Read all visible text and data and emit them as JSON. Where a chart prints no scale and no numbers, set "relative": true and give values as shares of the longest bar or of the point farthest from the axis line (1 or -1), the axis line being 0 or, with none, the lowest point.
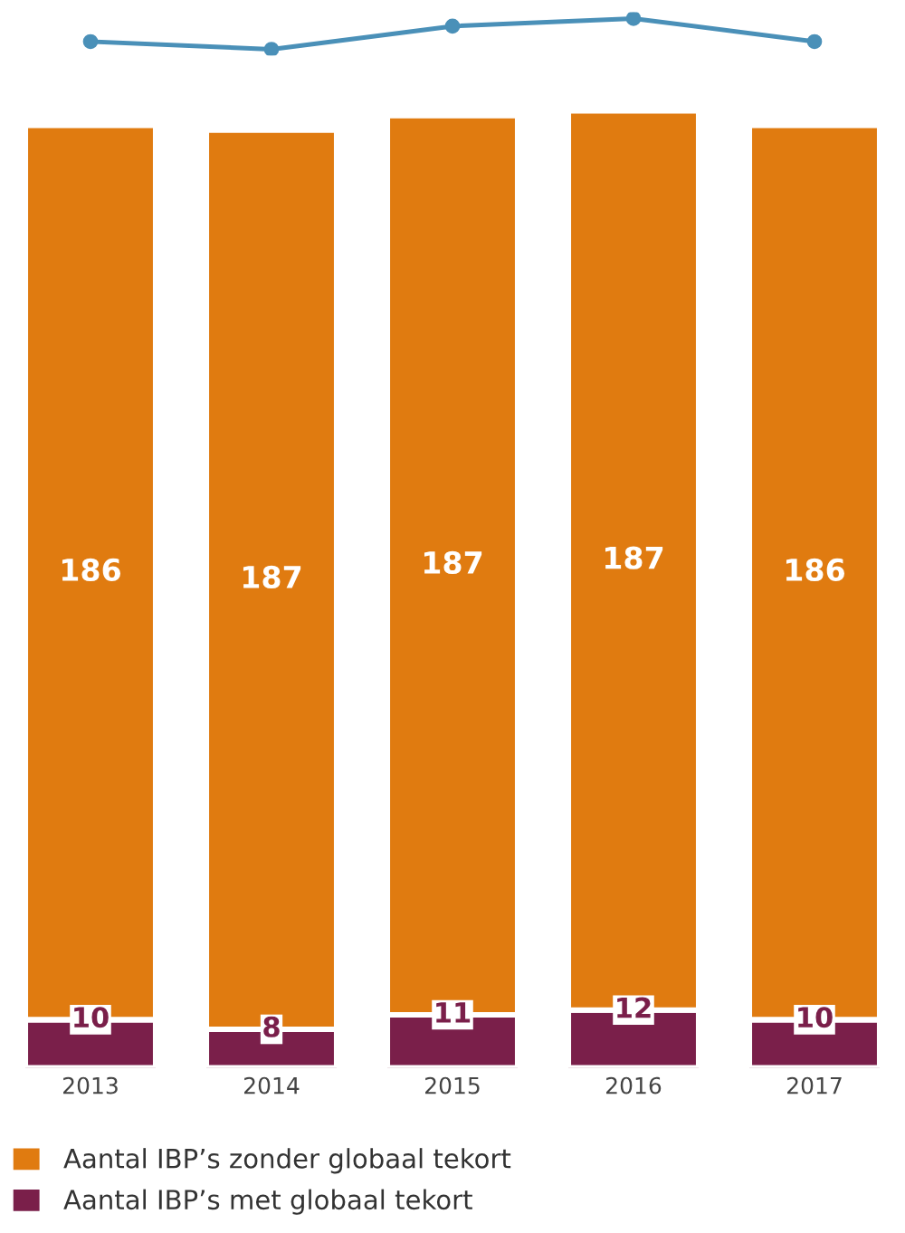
{
  "chart_data": [
    {
      "type": "line",
      "relative": true,
      "categories": [
        null,
        null,
        null,
        null,
        null
      ],
      "tick_labels": false,
      "marker": "circle",
      "series": [
        {
          "color": "#4a90b8",
          "values": [
            0.25,
            0,
            0.75,
            1,
            0.25
          ]
        }
      ]
    },
    {
      "type": "bar",
      "stacked": true,
      "categories": [
        "2013",
        "2014",
        "2015",
        "2016",
        "2017"
      ],
      "series": [
        {
          "name": "Aantal IBP’s met globaal tekort",
          "color": "#7a1f4a",
          "values": [
            10,
            8,
            11,
            12,
            10
          ]
        },
        {
          "name": "Aantal IBP’s zonder globaal tekort",
          "color": "#e07b10",
          "values": [
            186,
            187,
            187,
            187,
            186
          ]
        }
      ],
      "tick_labels": "x",
      "data_labels": true,
      "legend": "bottom",
      "grid": false
    }
  ]
}
